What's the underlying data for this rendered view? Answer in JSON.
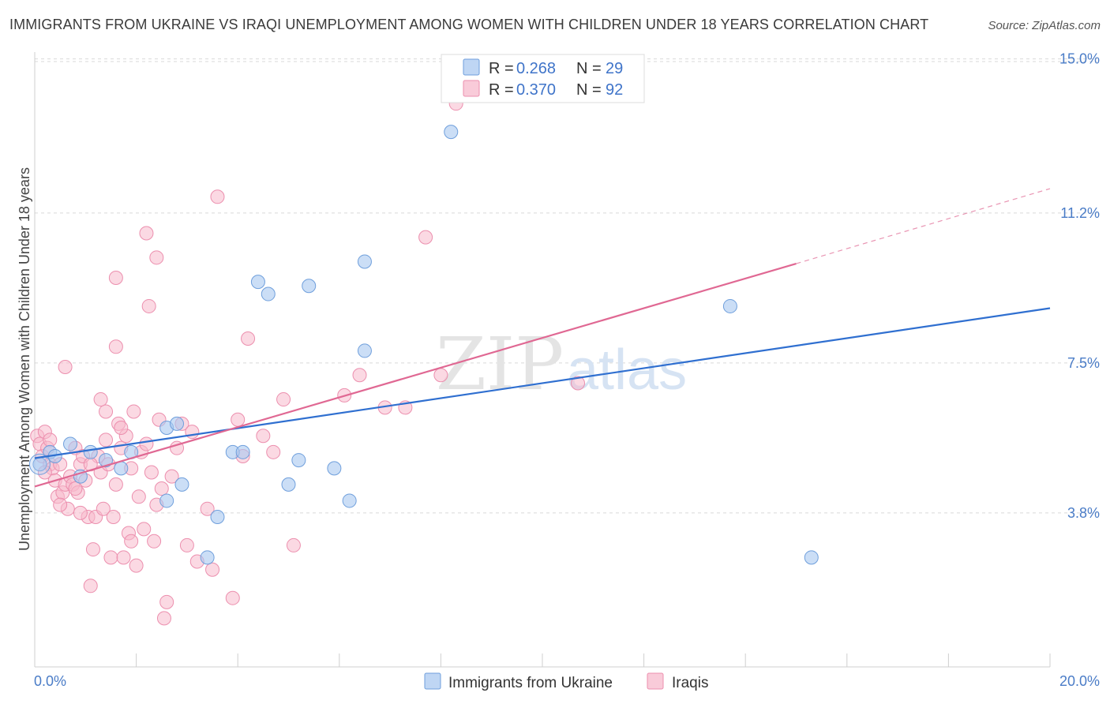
{
  "header": {
    "title": "IMMIGRANTS FROM UKRAINE VS IRAQI UNEMPLOYMENT AMONG WOMEN WITH CHILDREN UNDER 18 YEARS CORRELATION CHART",
    "source": "Source: ZipAtlas.com"
  },
  "watermark": {
    "zip": "ZIP",
    "atlas": "atlas"
  },
  "legend": {
    "series1": {
      "r_label": "R =",
      "r_value": "0.268",
      "n_label": "N =",
      "n_value": "29"
    },
    "series2": {
      "r_label": "R =",
      "r_value": "0.370",
      "n_label": "N =",
      "n_value": "92"
    }
  },
  "colors": {
    "ukraine_fill": "#a9c8f0",
    "ukraine_stroke": "#6f9fdc",
    "ukraine_line": "#2f6fd0",
    "iraqi_fill": "#f7b9cc",
    "iraqi_stroke": "#ec8fae",
    "iraqi_line": "#e06893",
    "grid": "#d9d9d9",
    "tick_text": "#4a7cc7"
  },
  "chart_data": {
    "type": "scatter",
    "title": "IMMIGRANTS FROM UKRAINE VS IRAQI UNEMPLOYMENT AMONG WOMEN WITH CHILDREN UNDER 18 YEARS CORRELATION CHART",
    "xlabel": "",
    "ylabel": "Unemployment Among Women with Children Under 18 years",
    "xlim": [
      0,
      20
    ],
    "ylim": [
      0,
      15.5
    ],
    "x_tick_labels": [
      "0.0%",
      "20.0%"
    ],
    "y_ticks": [
      3.8,
      7.5,
      11.2,
      15.0
    ],
    "y_tick_labels": [
      "3.8%",
      "7.5%",
      "11.2%",
      "15.0%"
    ],
    "grid": true,
    "legend_position": "top-center",
    "series": [
      {
        "name": "Immigrants from Ukraine",
        "r": 0.268,
        "n": 29,
        "trend": {
          "x": [
            0,
            20
          ],
          "y": [
            5.15,
            8.85
          ]
        },
        "points": [
          [
            0.1,
            5.0
          ],
          [
            0.3,
            5.3
          ],
          [
            0.7,
            5.5
          ],
          [
            0.9,
            4.7
          ],
          [
            1.1,
            5.3
          ],
          [
            1.4,
            5.1
          ],
          [
            1.7,
            4.9
          ],
          [
            1.9,
            5.3
          ],
          [
            2.6,
            5.9
          ],
          [
            2.8,
            6.0
          ],
          [
            2.6,
            4.1
          ],
          [
            2.9,
            4.5
          ],
          [
            3.6,
            3.7
          ],
          [
            3.4,
            2.7
          ],
          [
            3.9,
            5.3
          ],
          [
            4.1,
            5.3
          ],
          [
            4.4,
            9.5
          ],
          [
            4.6,
            9.2
          ],
          [
            5.0,
            4.5
          ],
          [
            5.2,
            5.1
          ],
          [
            5.4,
            9.4
          ],
          [
            5.9,
            4.9
          ],
          [
            6.2,
            4.1
          ],
          [
            6.5,
            7.8
          ],
          [
            6.5,
            10.0
          ],
          [
            8.2,
            13.2
          ],
          [
            13.7,
            8.9
          ],
          [
            15.3,
            2.7
          ],
          [
            0.4,
            5.2
          ]
        ]
      },
      {
        "name": "Iraqis",
        "r": 0.37,
        "n": 92,
        "trend": {
          "x": [
            0,
            15
          ],
          "y": [
            4.45,
            9.95
          ]
        },
        "trend_dashed": {
          "x": [
            15,
            20
          ],
          "y": [
            9.95,
            11.8
          ]
        },
        "points": [
          [
            0.05,
            5.7
          ],
          [
            0.1,
            5.5
          ],
          [
            0.15,
            5.2
          ],
          [
            0.2,
            5.8
          ],
          [
            0.25,
            5.4
          ],
          [
            0.3,
            5.0
          ],
          [
            0.35,
            4.9
          ],
          [
            0.4,
            4.6
          ],
          [
            0.45,
            4.2
          ],
          [
            0.5,
            5.0
          ],
          [
            0.55,
            4.3
          ],
          [
            0.6,
            4.5
          ],
          [
            0.65,
            3.9
          ],
          [
            0.7,
            4.7
          ],
          [
            0.75,
            4.5
          ],
          [
            0.8,
            5.4
          ],
          [
            0.85,
            4.3
          ],
          [
            0.9,
            5.0
          ],
          [
            0.95,
            5.2
          ],
          [
            1.0,
            4.6
          ],
          [
            1.05,
            3.7
          ],
          [
            1.1,
            2.0
          ],
          [
            1.15,
            2.9
          ],
          [
            1.2,
            3.7
          ],
          [
            1.25,
            5.2
          ],
          [
            1.3,
            4.8
          ],
          [
            1.35,
            3.9
          ],
          [
            1.4,
            6.3
          ],
          [
            1.45,
            5.0
          ],
          [
            1.5,
            2.7
          ],
          [
            1.55,
            3.7
          ],
          [
            1.6,
            4.5
          ],
          [
            1.65,
            6.0
          ],
          [
            1.7,
            5.4
          ],
          [
            1.75,
            2.7
          ],
          [
            1.8,
            5.7
          ],
          [
            1.85,
            3.3
          ],
          [
            1.9,
            4.9
          ],
          [
            1.95,
            6.3
          ],
          [
            2.0,
            2.5
          ],
          [
            2.05,
            4.2
          ],
          [
            2.1,
            5.3
          ],
          [
            2.15,
            3.4
          ],
          [
            2.2,
            10.7
          ],
          [
            2.25,
            8.9
          ],
          [
            2.3,
            4.8
          ],
          [
            2.35,
            3.1
          ],
          [
            2.4,
            4.0
          ],
          [
            2.45,
            6.1
          ],
          [
            2.5,
            4.4
          ],
          [
            2.55,
            1.2
          ],
          [
            2.6,
            1.6
          ],
          [
            2.7,
            4.7
          ],
          [
            2.8,
            5.4
          ],
          [
            3.0,
            3.0
          ],
          [
            3.2,
            2.6
          ],
          [
            3.4,
            3.9
          ],
          [
            3.5,
            2.4
          ],
          [
            3.6,
            11.6
          ],
          [
            3.9,
            1.7
          ],
          [
            4.0,
            6.1
          ],
          [
            4.1,
            5.2
          ],
          [
            4.2,
            8.1
          ],
          [
            4.5,
            5.7
          ],
          [
            4.7,
            5.3
          ],
          [
            4.9,
            6.6
          ],
          [
            5.1,
            3.0
          ],
          [
            6.1,
            6.7
          ],
          [
            6.4,
            7.2
          ],
          [
            6.9,
            6.4
          ],
          [
            7.3,
            6.4
          ],
          [
            7.7,
            10.6
          ],
          [
            8.0,
            7.2
          ],
          [
            8.3,
            13.9
          ],
          [
            10.7,
            7.0
          ],
          [
            0.6,
            7.4
          ],
          [
            1.6,
            7.9
          ],
          [
            1.6,
            9.6
          ],
          [
            2.4,
            10.1
          ],
          [
            1.3,
            6.6
          ],
          [
            0.3,
            5.6
          ],
          [
            0.5,
            4.0
          ],
          [
            1.1,
            5.0
          ],
          [
            1.7,
            5.9
          ],
          [
            2.2,
            5.5
          ],
          [
            0.8,
            4.4
          ],
          [
            1.9,
            3.1
          ],
          [
            2.9,
            6.0
          ],
          [
            0.2,
            4.8
          ],
          [
            1.4,
            5.6
          ],
          [
            0.9,
            3.8
          ],
          [
            3.1,
            5.8
          ]
        ]
      }
    ]
  },
  "axis": {
    "y_title": "Unemployment Among Women with Children Under 18 years",
    "x_min_label": "0.0%",
    "x_max_label": "20.0%"
  },
  "bottom_legend": {
    "ukraine": "Immigrants from Ukraine",
    "iraqis": "Iraqis"
  }
}
